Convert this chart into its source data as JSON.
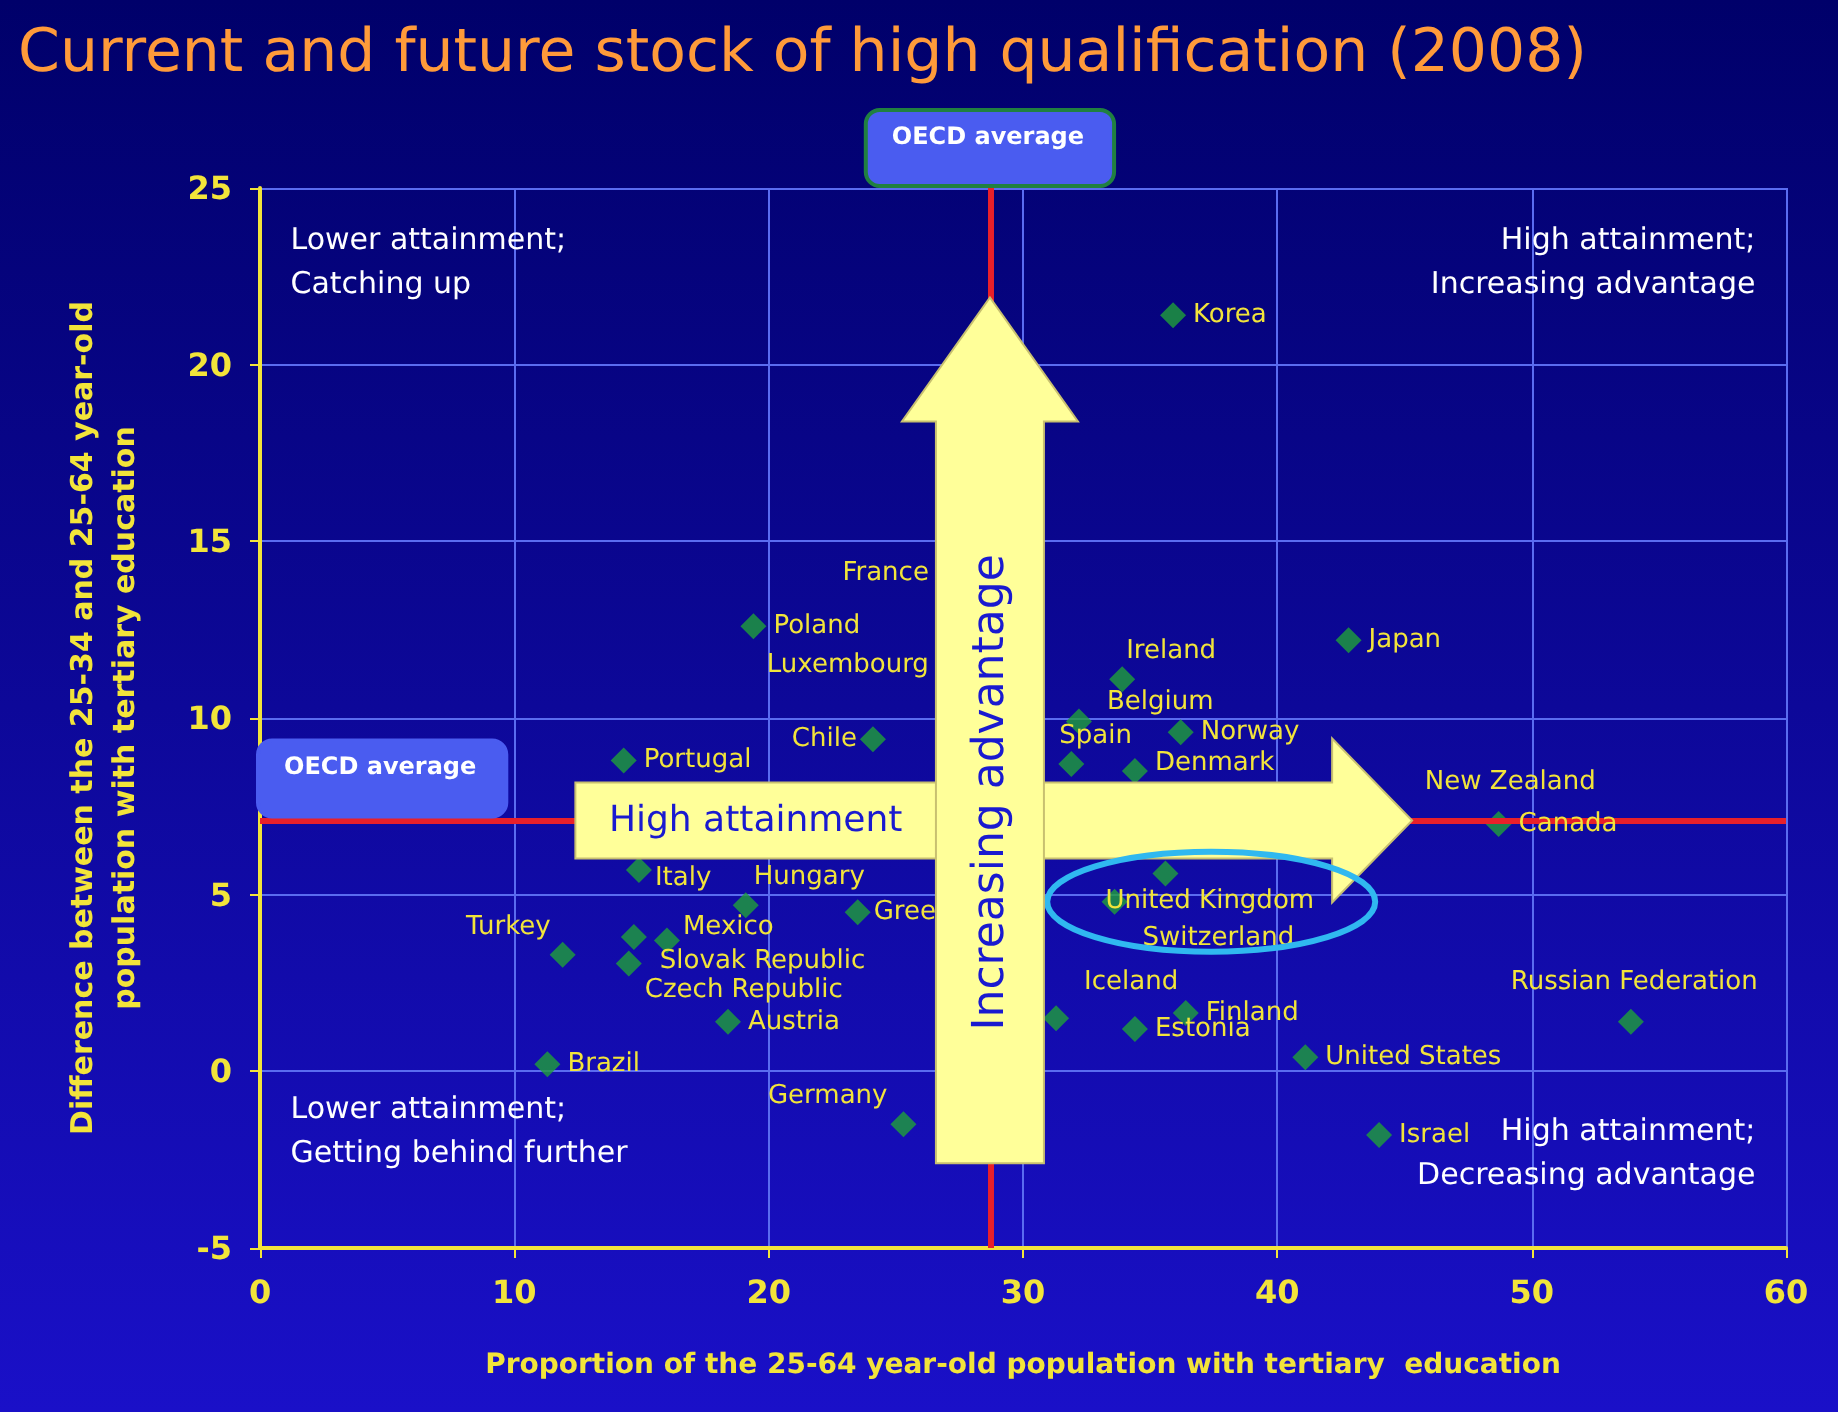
{
  "chart_data": {
    "type": "scatter",
    "title": "Current and future stock of high qualification (2008)",
    "xlabel": "Proportion of the 25-64 year-old population with tertiary  education",
    "ylabel": "Difference between the 25-34 and 25-64 year-old population with tertiary education",
    "xlim": [
      0,
      60
    ],
    "xticks": [
      0,
      10,
      20,
      30,
      40,
      50,
      60
    ],
    "ylim": [
      -5,
      25
    ],
    "yticks": [
      -5,
      0,
      5,
      10,
      15,
      20,
      25
    ],
    "grid": true,
    "marker": "diamond",
    "series": [
      {
        "color": "#1fa03a",
        "x": [
          35.9,
          42.8,
          19.4,
          27.5,
          28.3,
          33.9,
          32.2,
          36.2,
          24.1,
          31.9,
          14.3,
          34.4,
          40.1,
          48.7,
          14.9,
          19.1,
          23.5,
          35.6,
          33.6,
          11.9,
          16.0,
          14.7,
          14.5,
          31.3,
          36.4,
          34.4,
          53.9,
          18.4,
          11.3,
          41.1,
          25.3,
          44.0
        ],
        "values": [
          21.4,
          12.2,
          12.6,
          null,
          null,
          11.1,
          9.9,
          9.6,
          9.4,
          8.7,
          8.8,
          8.5,
          null,
          7.0,
          5.7,
          4.7,
          4.5,
          5.6,
          4.8,
          3.3,
          3.7,
          3.8,
          3.05,
          1.5,
          1.65,
          1.2,
          1.4,
          1.4,
          0.2,
          0.4,
          -1.5,
          -1.8
        ]
      }
    ],
    "ref_lines": [
      {
        "axis": "x",
        "value": 28.7,
        "label": "OECD average",
        "color": "#e8202a"
      },
      {
        "axis": "y",
        "value": 7.1,
        "label": "OECD average",
        "color": "#e8202a"
      }
    ],
    "annotations": [
      {
        "text": "Korea",
        "x": 35.9,
        "y": 21.4
      },
      {
        "text": "Japan",
        "x": 42.8,
        "y": 12.2
      },
      {
        "text": "Poland",
        "x": 19.4,
        "y": 12.6
      },
      "France",
      "Luxembourg",
      {
        "text": "Ireland",
        "x": 33.9,
        "y": 11.1
      },
      {
        "text": "Belgium",
        "x": 32.2,
        "y": 9.9
      },
      {
        "text": "Norway",
        "x": 36.2,
        "y": 9.6
      },
      {
        "text": "Chile",
        "x": 24.1,
        "y": 9.4
      },
      {
        "text": "Spain",
        "x": 31.9,
        "y": 8.7
      },
      {
        "text": "Portugal",
        "x": 14.3,
        "y": 8.8
      },
      {
        "text": "Denmark",
        "x": 34.4,
        "y": 8.5
      },
      "New Zealand",
      {
        "text": "Canada",
        "x": 48.7,
        "y": 7.0
      },
      {
        "text": "Italy",
        "x": 14.9,
        "y": 5.7
      },
      {
        "text": "Hungary",
        "x": 19.1,
        "y": 4.7
      },
      {
        "text": "Gree",
        "x": 23.5,
        "y": 4.5
      },
      {
        "text": "United Kingdom",
        "x": 35.6,
        "y": 5.6
      },
      {
        "text": "Switzerland",
        "x": 33.6,
        "y": 4.8
      },
      {
        "text": "Turkey",
        "x": 11.9,
        "y": 3.3
      },
      {
        "text": "Mexico",
        "x": 16.0,
        "y": 3.7
      },
      {
        "text": "Slovak Republic",
        "x": 14.7,
        "y": 3.8
      },
      {
        "text": "Czech Republic",
        "x": 14.5,
        "y": 3.05
      },
      {
        "text": "Iceland",
        "x": 31.3,
        "y": 1.5
      },
      {
        "text": "Finland",
        "x": 36.4,
        "y": 1.65
      },
      {
        "text": "Estonia",
        "x": 34.4,
        "y": 1.2
      },
      {
        "text": "Russian Federation",
        "x": 53.9,
        "y": 1.4
      },
      {
        "text": "Austria",
        "x": 18.4,
        "y": 1.4
      },
      {
        "text": "Brazil",
        "x": 11.3,
        "y": 0.2
      },
      {
        "text": "United States",
        "x": 41.1,
        "y": 0.4
      },
      {
        "text": "Germany",
        "x": 25.3,
        "y": -1.5
      },
      {
        "text": "Israel",
        "x": 44.0,
        "y": -1.8
      },
      "Lower attainment;\nCatching up",
      "High attainment;\nIncreasing advantage",
      "Lower attainment;\nGetting behind further",
      "High attainment;\nDecreasing advantage",
      "High attainment",
      "Increasing advantage"
    ]
  }
}
